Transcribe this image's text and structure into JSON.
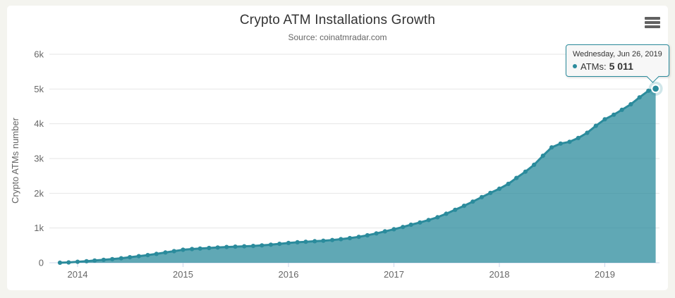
{
  "colors": {
    "page_bg": "#f4f4ef",
    "panel_bg": "#ffffff",
    "line": "#2b8b9c",
    "fill": "rgba(43,139,156,0.75)",
    "grid": "#e6e6e6",
    "axis_line": "#ccd6eb",
    "label": "#666666",
    "title": "#333333"
  },
  "header": {
    "title": "Crypto ATM Installations Growth",
    "subtitle": "Source: coinatmradar.com"
  },
  "menu": {
    "icon": "hamburger-menu-icon"
  },
  "tooltip": {
    "date": "Wednesday, Jun 26, 2019",
    "series_label": "ATMs:",
    "value": "5 011"
  },
  "chart_data": {
    "type": "area",
    "title": "Crypto ATM Installations Growth",
    "subtitle": "Source: coinatmradar.com",
    "xlabel": "",
    "ylabel": "Crypto ATMs number",
    "ylim": [
      0,
      6000
    ],
    "grid": "horizontal",
    "legend": "none",
    "y_ticks": [
      {
        "v": 0,
        "label": "0"
      },
      {
        "v": 1000,
        "label": "1k"
      },
      {
        "v": 2000,
        "label": "2k"
      },
      {
        "v": 3000,
        "label": "3k"
      },
      {
        "v": 4000,
        "label": "4k"
      },
      {
        "v": 5000,
        "label": "5k"
      },
      {
        "v": 6000,
        "label": "6k"
      }
    ],
    "x_ticks": [
      {
        "year": 2014,
        "label": "2014"
      },
      {
        "year": 2015,
        "label": "2015"
      },
      {
        "year": 2016,
        "label": "2016"
      },
      {
        "year": 2017,
        "label": "2017"
      },
      {
        "year": 2018,
        "label": "2018"
      },
      {
        "year": 2019,
        "label": "2019"
      }
    ],
    "series_name": "ATMs",
    "highlighted_point": {
      "date": "2019-06-26",
      "value": 5011
    },
    "points": [
      [
        "2013-11-01",
        2
      ],
      [
        "2013-12-01",
        10
      ],
      [
        "2014-01-01",
        28
      ],
      [
        "2014-02-01",
        45
      ],
      [
        "2014-03-01",
        65
      ],
      [
        "2014-04-01",
        85
      ],
      [
        "2014-05-01",
        105
      ],
      [
        "2014-06-01",
        130
      ],
      [
        "2014-07-01",
        160
      ],
      [
        "2014-08-01",
        190
      ],
      [
        "2014-09-01",
        220
      ],
      [
        "2014-10-01",
        255
      ],
      [
        "2014-11-01",
        295
      ],
      [
        "2014-12-01",
        335
      ],
      [
        "2015-01-01",
        375
      ],
      [
        "2015-02-01",
        395
      ],
      [
        "2015-03-01",
        410
      ],
      [
        "2015-04-01",
        425
      ],
      [
        "2015-05-01",
        440
      ],
      [
        "2015-06-01",
        455
      ],
      [
        "2015-07-01",
        465
      ],
      [
        "2015-08-01",
        475
      ],
      [
        "2015-09-01",
        485
      ],
      [
        "2015-10-01",
        500
      ],
      [
        "2015-11-01",
        520
      ],
      [
        "2015-12-01",
        545
      ],
      [
        "2016-01-01",
        570
      ],
      [
        "2016-02-01",
        590
      ],
      [
        "2016-03-01",
        605
      ],
      [
        "2016-04-01",
        620
      ],
      [
        "2016-05-01",
        635
      ],
      [
        "2016-06-01",
        655
      ],
      [
        "2016-07-01",
        680
      ],
      [
        "2016-08-01",
        710
      ],
      [
        "2016-09-01",
        745
      ],
      [
        "2016-10-01",
        790
      ],
      [
        "2016-11-01",
        845
      ],
      [
        "2016-12-01",
        905
      ],
      [
        "2017-01-01",
        965
      ],
      [
        "2017-02-01",
        1030
      ],
      [
        "2017-03-01",
        1095
      ],
      [
        "2017-04-01",
        1160
      ],
      [
        "2017-05-01",
        1230
      ],
      [
        "2017-06-01",
        1310
      ],
      [
        "2017-07-01",
        1410
      ],
      [
        "2017-08-01",
        1525
      ],
      [
        "2017-09-01",
        1640
      ],
      [
        "2017-10-01",
        1760
      ],
      [
        "2017-11-01",
        1890
      ],
      [
        "2017-12-01",
        2010
      ],
      [
        "2018-01-01",
        2130
      ],
      [
        "2018-02-01",
        2270
      ],
      [
        "2018-03-01",
        2440
      ],
      [
        "2018-04-01",
        2620
      ],
      [
        "2018-05-01",
        2820
      ],
      [
        "2018-06-01",
        3080
      ],
      [
        "2018-07-01",
        3320
      ],
      [
        "2018-08-01",
        3430
      ],
      [
        "2018-09-01",
        3480
      ],
      [
        "2018-10-01",
        3590
      ],
      [
        "2018-11-01",
        3740
      ],
      [
        "2018-12-01",
        3940
      ],
      [
        "2019-01-01",
        4130
      ],
      [
        "2019-02-01",
        4260
      ],
      [
        "2019-03-01",
        4400
      ],
      [
        "2019-04-01",
        4560
      ],
      [
        "2019-05-01",
        4760
      ],
      [
        "2019-06-01",
        4950
      ],
      [
        "2019-06-26",
        5011
      ]
    ]
  }
}
